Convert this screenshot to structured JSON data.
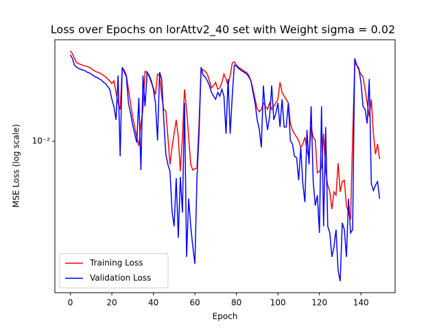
{
  "chart_data": {
    "type": "line",
    "title": "Loss over Epochs on lorAttv2_40 set with Weight sigma = 0.02",
    "xlabel": "Epoch",
    "ylabel": "MSE Loss (log scale)",
    "log_y": true,
    "legend": "lower left",
    "xlim": [
      -7.45,
      156.45
    ],
    "xticks": [
      0,
      20,
      40,
      60,
      80,
      100,
      120,
      140
    ],
    "ylim": [
      0.0012,
      0.0414
    ],
    "yticks": [
      {
        "value": 0.01,
        "label": "10⁻²"
      }
    ],
    "x": [
      0,
      1,
      2,
      3,
      4,
      5,
      6,
      7,
      8,
      9,
      10,
      11,
      12,
      13,
      14,
      15,
      16,
      17,
      18,
      19,
      20,
      21,
      22,
      23,
      24,
      25,
      26,
      27,
      28,
      29,
      30,
      31,
      32,
      33,
      34,
      35,
      36,
      37,
      38,
      39,
      40,
      41,
      42,
      43,
      44,
      45,
      46,
      47,
      48,
      49,
      50,
      51,
      52,
      53,
      54,
      55,
      56,
      57,
      58,
      59,
      60,
      61,
      62,
      63,
      64,
      65,
      66,
      67,
      68,
      69,
      70,
      71,
      72,
      73,
      74,
      75,
      76,
      77,
      78,
      79,
      80,
      81,
      82,
      83,
      84,
      85,
      86,
      87,
      88,
      89,
      90,
      91,
      92,
      93,
      94,
      95,
      96,
      97,
      98,
      99,
      100,
      101,
      102,
      103,
      104,
      105,
      106,
      107,
      108,
      109,
      110,
      111,
      112,
      113,
      114,
      115,
      116,
      117,
      118,
      119,
      120,
      121,
      122,
      123,
      124,
      125,
      126,
      127,
      128,
      129,
      130,
      131,
      132,
      133,
      134,
      135,
      136,
      137,
      138,
      139,
      140,
      141,
      142,
      143,
      144,
      145,
      146,
      147,
      148,
      149
    ],
    "series": [
      {
        "name": "Training Loss",
        "color": "#ff0000",
        "values": [
          0.0355,
          0.0341,
          0.0319,
          0.0301,
          0.0296,
          0.0293,
          0.029,
          0.0287,
          0.0285,
          0.0282,
          0.0277,
          0.0271,
          0.0266,
          0.0263,
          0.0261,
          0.0256,
          0.0251,
          0.0246,
          0.0239,
          0.0233,
          0.0224,
          0.0233,
          0.0198,
          0.0171,
          0.0156,
          0.0277,
          0.0271,
          0.0251,
          0.0207,
          0.0171,
          0.0141,
          0.0122,
          0.0106,
          0.00935,
          0.0128,
          0.0156,
          0.0266,
          0.0261,
          0.0246,
          0.0228,
          0.0211,
          0.0192,
          0.0256,
          0.0251,
          0.0188,
          0.0156,
          0.0152,
          0.0106,
          0.00722,
          0.00917,
          0.0111,
          0.0135,
          0.0106,
          0.00656,
          0.0106,
          0.0207,
          0.0156,
          0.0106,
          0.00722,
          0.00668,
          0.00681,
          0.00688,
          0.0128,
          0.0277,
          0.0271,
          0.0266,
          0.0256,
          0.0233,
          0.0211,
          0.0218,
          0.0228,
          0.0207,
          0.0211,
          0.0228,
          0.0256,
          0.0239,
          0.0218,
          0.0251,
          0.0299,
          0.0304,
          0.029,
          0.0282,
          0.0277,
          0.0271,
          0.0266,
          0.0261,
          0.0251,
          0.0233,
          0.0207,
          0.018,
          0.0158,
          0.0151,
          0.0156,
          0.0171,
          0.0163,
          0.0156,
          0.0171,
          0.0156,
          0.0163,
          0.0171,
          0.018,
          0.0228,
          0.0198,
          0.0188,
          0.018,
          0.0171,
          0.0128,
          0.0117,
          0.0111,
          0.0106,
          0.0101,
          0.00917,
          0.00962,
          0.0106,
          0.00875,
          0.00794,
          0.0122,
          0.0106,
          0.0101,
          0.00643,
          0.00656,
          0.00688,
          0.0111,
          0.00656,
          0.00541,
          0.00492,
          0.00387,
          0.00492,
          0.00469,
          0.00736,
          0.00492,
          0.00568,
          0.00579,
          0.00406,
          0.00369,
          0.00335,
          0.0106,
          0.0299,
          0.029,
          0.0271,
          0.0256,
          0.0246,
          0.0207,
          0.0171,
          0.0141,
          0.018,
          0.0111,
          0.00834,
          0.00962,
          0.00779
        ]
      },
      {
        "name": "Validation Loss",
        "color": "#0000ff",
        "values": [
          0.0335,
          0.0319,
          0.029,
          0.0282,
          0.0277,
          0.0274,
          0.0271,
          0.0269,
          0.0263,
          0.0261,
          0.0256,
          0.0251,
          0.0246,
          0.0244,
          0.0239,
          0.0235,
          0.0228,
          0.0224,
          0.0215,
          0.0207,
          0.018,
          0.0163,
          0.0135,
          0.0251,
          0.0081,
          0.0282,
          0.0263,
          0.0246,
          0.0171,
          0.0148,
          0.0126,
          0.0111,
          0.00981,
          0.0183,
          0.00668,
          0.0251,
          0.0163,
          0.0263,
          0.0251,
          0.0233,
          0.0207,
          0.0171,
          0.0101,
          0.0263,
          0.0239,
          0.0135,
          0.00834,
          0.00722,
          0.00656,
          0.00376,
          0.00304,
          0.00596,
          0.00259,
          0.00607,
          0.00369,
          0.0171,
          0.00198,
          0.00447,
          0.00304,
          0.00228,
          0.0018,
          0.00596,
          0.0111,
          0.0282,
          0.0251,
          0.0246,
          0.0233,
          0.0218,
          0.0198,
          0.0188,
          0.018,
          0.0198,
          0.0188,
          0.0207,
          0.0188,
          0.0111,
          0.0239,
          0.0111,
          0.0188,
          0.029,
          0.0287,
          0.0277,
          0.0271,
          0.0266,
          0.0261,
          0.0256,
          0.0246,
          0.0233,
          0.0198,
          0.0171,
          0.0135,
          0.0119,
          0.00917,
          0.0218,
          0.0148,
          0.0117,
          0.0141,
          0.0218,
          0.0135,
          0.0148,
          0.0171,
          0.0122,
          0.018,
          0.0122,
          0.0122,
          0.0171,
          0.0101,
          0.00962,
          0.0081,
          0.00794,
          0.00579,
          0.00917,
          0.00552,
          0.00426,
          0.0117,
          0.00722,
          0.0163,
          0.00568,
          0.00406,
          0.00469,
          0.00277,
          0.0163,
          0.00304,
          0.0122,
          0.00304,
          0.00277,
          0.00198,
          0.00228,
          0.0029,
          0.00163,
          0.00141,
          0.00319,
          0.0029,
          0.00198,
          0.00447,
          0.00277,
          0.0029,
          0.0319,
          0.029,
          0.0277,
          0.0228,
          0.0163,
          0.0156,
          0.0128,
          0.0239,
          0.00552,
          0.00501,
          0.00541,
          0.00568,
          0.00447
        ]
      }
    ]
  }
}
